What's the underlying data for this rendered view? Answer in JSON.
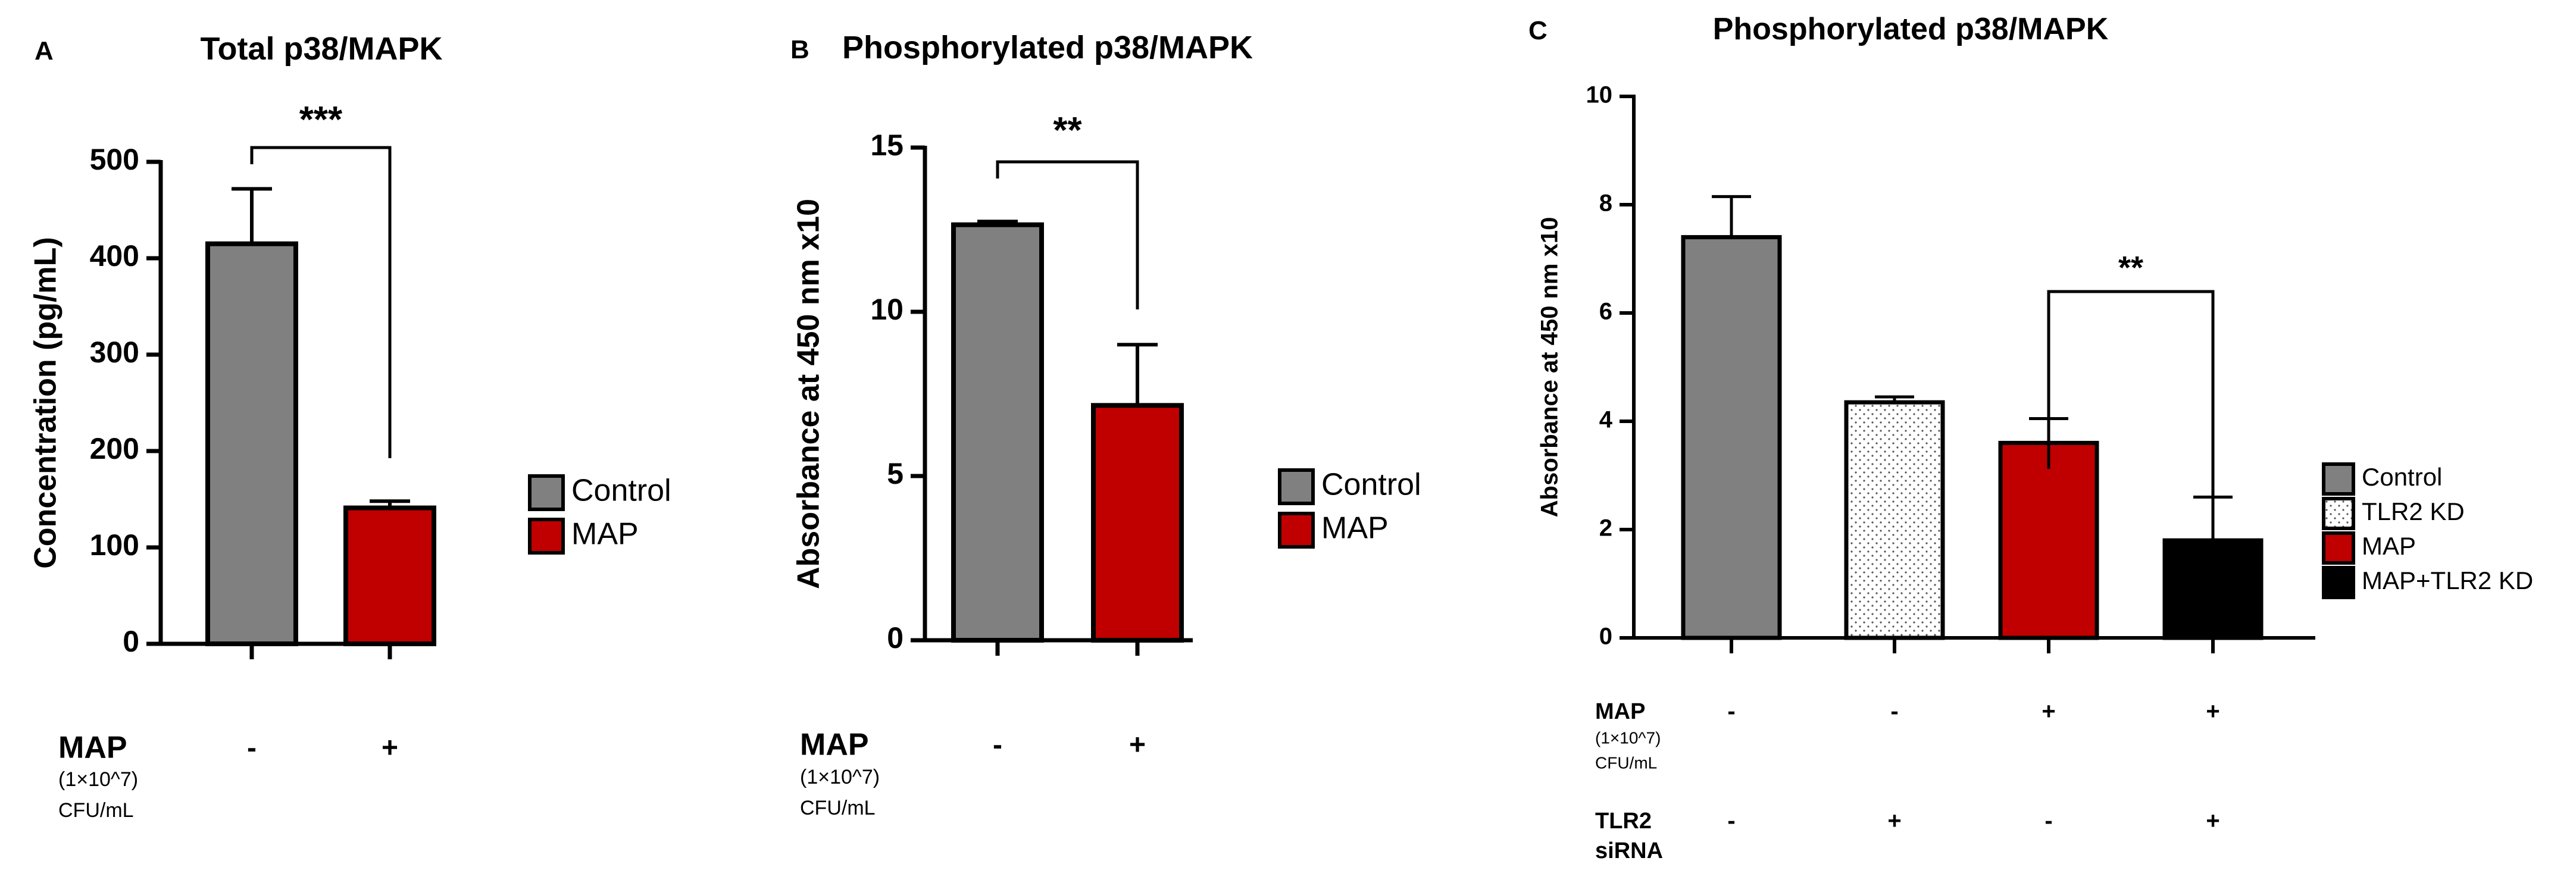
{
  "colors": {
    "control": "#808080",
    "map": "#c00000",
    "map_tlr2kd": "#000000",
    "tlr2kd": "#ffffff",
    "axis": "#000000"
  },
  "chart_data": [
    {
      "panel_letter": "A",
      "type": "bar",
      "title": "Total p38/MAPK",
      "ylabel": "Concentration (pg/mL)",
      "xlabel": "",
      "ylim": [
        0,
        500
      ],
      "yticks": [
        "0",
        "100",
        "200",
        "300",
        "400",
        "500"
      ],
      "categories": [
        "Control",
        "MAP"
      ],
      "values": [
        415,
        141
      ],
      "errors": [
        57,
        7
      ],
      "bar_colors": [
        "control",
        "map"
      ],
      "legend": [
        {
          "label": "Control",
          "color": "control"
        },
        {
          "label": "MAP",
          "color": "map"
        }
      ],
      "significance": [
        {
          "from": 0,
          "to": 1,
          "label": "***"
        }
      ],
      "condition_rows": [
        {
          "label": "MAP",
          "sublabel": [
            "(1×10^7)",
            "CFU/mL"
          ],
          "values": [
            "-",
            "+"
          ]
        }
      ]
    },
    {
      "panel_letter": "B",
      "type": "bar",
      "title": "Phosphorylated p38/MAPK",
      "ylabel": "Absorbance at 450 nm x10",
      "xlabel": "",
      "ylim": [
        0,
        15
      ],
      "yticks": [
        "0",
        "5",
        "10",
        "15"
      ],
      "categories": [
        "Control",
        "MAP"
      ],
      "values": [
        12.65,
        7.15
      ],
      "errors": [
        0.1,
        1.85
      ],
      "bar_colors": [
        "control",
        "map"
      ],
      "legend": [
        {
          "label": "Control",
          "color": "control"
        },
        {
          "label": "MAP",
          "color": "map"
        }
      ],
      "significance": [
        {
          "from": 0,
          "to": 1,
          "label": "**"
        }
      ],
      "condition_rows": [
        {
          "label": "MAP",
          "sublabel": [
            "(1×10^7)",
            "CFU/mL"
          ],
          "values": [
            "-",
            "+"
          ]
        }
      ]
    },
    {
      "panel_letter": "C",
      "type": "bar",
      "title": "Phosphorylated p38/MAPK",
      "ylabel": "Absorbance at 450 nm x10",
      "xlabel": "",
      "ylim": [
        0,
        10
      ],
      "yticks": [
        "0",
        "2",
        "4",
        "6",
        "8",
        "10"
      ],
      "categories": [
        "Control",
        "TLR2 KD",
        "MAP",
        "MAP+TLR2 KD"
      ],
      "values": [
        7.4,
        4.35,
        3.6,
        1.8
      ],
      "errors": [
        0.75,
        0.1,
        0.45,
        0.8
      ],
      "bar_colors": [
        "control",
        "tlr2kd",
        "map",
        "map_tlr2kd"
      ],
      "legend": [
        {
          "label": "Control",
          "color": "control"
        },
        {
          "label": "TLR2 KD",
          "color": "tlr2kd"
        },
        {
          "label": "MAP",
          "color": "map"
        },
        {
          "label": "MAP+TLR2 KD",
          "color": "map_tlr2kd"
        }
      ],
      "significance": [
        {
          "from": 2,
          "to": 3,
          "label": "**"
        }
      ],
      "condition_rows": [
        {
          "label": "MAP",
          "sublabel": [
            "(1×10^7)",
            "CFU/mL"
          ],
          "values": [
            "-",
            "-",
            "+",
            "+"
          ]
        },
        {
          "label": "TLR2",
          "sublabel": [
            "siRNA"
          ],
          "values": [
            "-",
            "+",
            "-",
            "+"
          ]
        }
      ]
    }
  ]
}
